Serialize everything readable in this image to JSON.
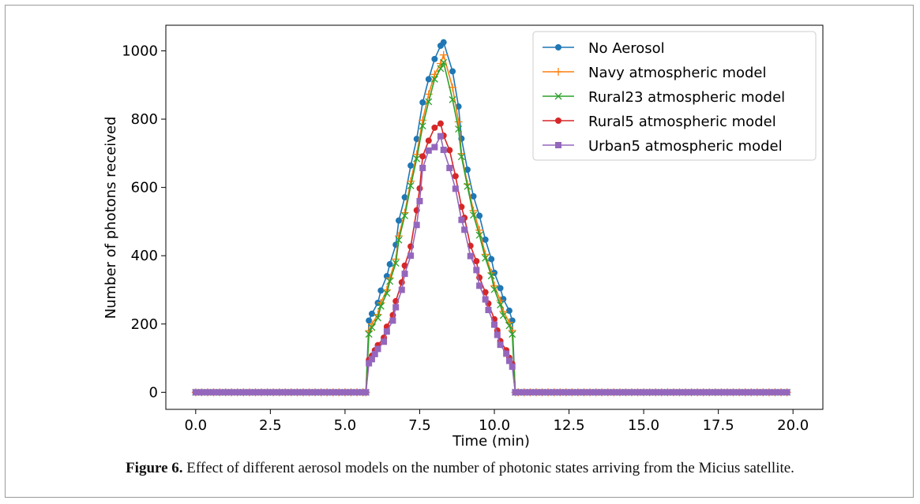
{
  "chart_data": {
    "type": "line",
    "xlabel": "Time (min)",
    "ylabel": "Number of photons received",
    "xlim": [
      -1.0,
      21.0
    ],
    "ylim": [
      -50,
      1075
    ],
    "xticks": [
      "0.0",
      "2.5",
      "5.0",
      "7.5",
      "10.0",
      "12.5",
      "15.0",
      "17.5",
      "20.0"
    ],
    "yticks": [
      "0",
      "200",
      "400",
      "600",
      "800",
      "1000"
    ],
    "legend_position": "top-right",
    "grid": false,
    "series": [
      {
        "name": "No Aerosol",
        "color": "#1f77b4",
        "marker": "circle",
        "peak_x": [
          5.7,
          5.8,
          5.9,
          6.1,
          6.2,
          6.4,
          6.5,
          6.7,
          6.8,
          7.0,
          7.2,
          7.4,
          7.6,
          7.8,
          8.0,
          8.2,
          8.3,
          8.6,
          8.8,
          8.9,
          9.1,
          9.3,
          9.5,
          9.7,
          9.9,
          10.0,
          10.2,
          10.3,
          10.5,
          10.6,
          10.7,
          10.8
        ],
        "peak_y": [
          0,
          210,
          230,
          262,
          298,
          340,
          375,
          432,
          503,
          571,
          664,
          742,
          849,
          917,
          976,
          1015,
          1025,
          940,
          837,
          743,
          652,
          574,
          517,
          447,
          390,
          350,
          305,
          273,
          239,
          210,
          0,
          0
        ]
      },
      {
        "name": "Navy atmospheric model",
        "color": "#ff7f0e",
        "marker": "plus",
        "peak_x": [
          5.7,
          5.8,
          5.9,
          6.1,
          6.2,
          6.4,
          6.5,
          6.7,
          6.8,
          7.0,
          7.2,
          7.4,
          7.6,
          7.8,
          8.0,
          8.2,
          8.3,
          8.6,
          8.8,
          8.9,
          9.1,
          9.3,
          9.5,
          9.7,
          9.9,
          10.0,
          10.2,
          10.3,
          10.5,
          10.6,
          10.7,
          10.8
        ],
        "peak_y": [
          0,
          180,
          200,
          228,
          262,
          300,
          335,
          390,
          458,
          526,
          618,
          697,
          797,
          873,
          931,
          963,
          988,
          893,
          792,
          699,
          610,
          532,
          475,
          404,
          350,
          312,
          269,
          237,
          205,
          181,
          0,
          0
        ]
      },
      {
        "name": "Rural23 atmospheric model",
        "color": "#2ca02c",
        "marker": "x",
        "peak_x": [
          5.7,
          5.8,
          5.9,
          6.1,
          6.2,
          6.4,
          6.5,
          6.7,
          6.8,
          7.0,
          7.2,
          7.4,
          7.6,
          7.8,
          8.0,
          8.2,
          8.3,
          8.6,
          8.8,
          8.9,
          9.1,
          9.3,
          9.5,
          9.7,
          9.9,
          10.0,
          10.2,
          10.3,
          10.5,
          10.6,
          10.7,
          10.8
        ],
        "peak_y": [
          0,
          170,
          190,
          218,
          252,
          290,
          325,
          378,
          446,
          517,
          605,
          684,
          780,
          851,
          917,
          948,
          966,
          857,
          771,
          690,
          603,
          519,
          460,
          393,
          341,
          301,
          256,
          225,
          195,
          170,
          0,
          0
        ]
      },
      {
        "name": "Rural5 atmospheric model",
        "color": "#d62728",
        "marker": "circle",
        "peak_x": [
          5.7,
          5.8,
          5.9,
          6.0,
          6.1,
          6.3,
          6.4,
          6.6,
          6.7,
          6.9,
          7.0,
          7.2,
          7.4,
          7.5,
          7.6,
          7.8,
          8.0,
          8.2,
          8.3,
          8.5,
          8.7,
          8.9,
          9.0,
          9.2,
          9.4,
          9.5,
          9.7,
          9.8,
          10.0,
          10.1,
          10.2,
          10.4,
          10.5,
          10.6,
          10.7,
          10.8
        ],
        "peak_y": [
          0,
          95,
          107,
          123,
          138,
          160,
          192,
          226,
          267,
          322,
          371,
          427,
          533,
          597,
          691,
          737,
          775,
          787,
          752,
          709,
          633,
          543,
          511,
          429,
          384,
          336,
          293,
          260,
          214,
          181,
          150,
          123,
          101,
          83,
          0,
          0
        ]
      },
      {
        "name": "Urban5 atmospheric model",
        "color": "#9467bd",
        "marker": "square",
        "peak_x": [
          5.7,
          5.8,
          5.9,
          6.0,
          6.1,
          6.3,
          6.4,
          6.6,
          6.7,
          6.9,
          7.0,
          7.2,
          7.4,
          7.5,
          7.6,
          7.8,
          8.0,
          8.2,
          8.3,
          8.5,
          8.7,
          8.9,
          9.0,
          9.2,
          9.4,
          9.5,
          9.7,
          9.8,
          10.0,
          10.1,
          10.2,
          10.4,
          10.5,
          10.6,
          10.7,
          10.8
        ],
        "peak_y": [
          0,
          85,
          97,
          112,
          127,
          148,
          178,
          210,
          249,
          300,
          347,
          400,
          490,
          560,
          657,
          708,
          718,
          750,
          710,
          657,
          596,
          505,
          476,
          399,
          358,
          312,
          272,
          241,
          198,
          168,
          139,
          113,
          92,
          75,
          0,
          0
        ]
      }
    ],
    "baseline": {
      "x_start": 0.0,
      "x_end": 19.9,
      "step": 0.2,
      "value": 0
    }
  },
  "figure": {
    "caption_label": "Figure 6.",
    "caption_text": " Effect of different aerosol models on the number of photonic states arriving from the Micius satellite."
  }
}
